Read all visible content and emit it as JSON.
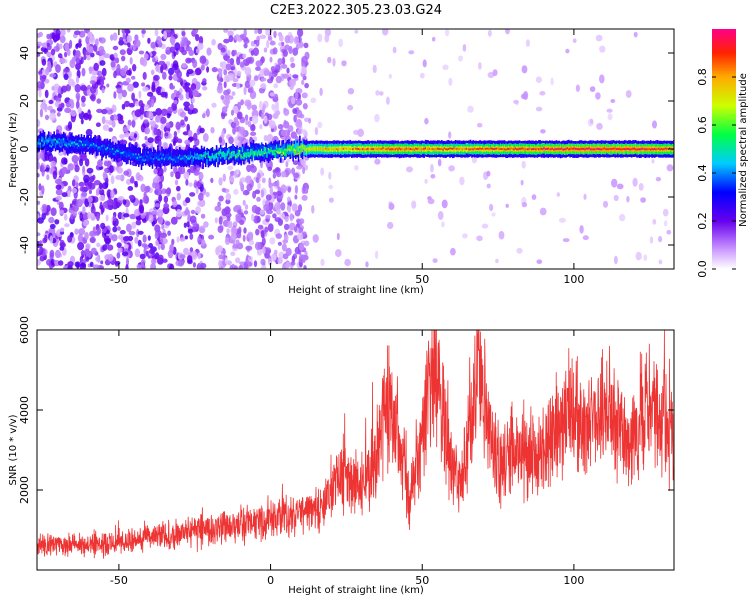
{
  "title": "C2E3.2022.305.23.03.G24",
  "chart_data": [
    {
      "type": "heatmap",
      "xlabel": "Height of straight line (km)",
      "ylabel": "Frequency (Hz)",
      "xlim": [
        -77,
        133
      ],
      "ylim": [
        -50,
        50
      ],
      "xticks": [
        -50,
        0,
        50,
        100
      ],
      "yticks": [
        -40,
        -20,
        0,
        20,
        40
      ],
      "colorbar": {
        "label": "Normalized spectral amplitude",
        "range": [
          0,
          1
        ],
        "ticks": [
          "0.0",
          "0.2",
          "0.4",
          "0.6",
          "0.8"
        ],
        "colormap": "rainbow (white-violet-blue-cyan-green-yellow-red-magenta)"
      },
      "ridge": {
        "description": "bright ridge near 0 Hz; noisy scattered speckle below ~12 km",
        "x": [
          -75,
          -60,
          -45,
          -30,
          -20,
          -10,
          0,
          10,
          20,
          40,
          60,
          80,
          100,
          120,
          133
        ],
        "frequency": [
          3,
          2,
          -3,
          -4,
          -3,
          -2,
          -1,
          0,
          0,
          0,
          0,
          0,
          0,
          0,
          0
        ],
        "amplitude": [
          0.45,
          0.4,
          0.4,
          0.4,
          0.5,
          0.55,
          0.55,
          0.7,
          0.75,
          0.85,
          0.8,
          0.85,
          0.9,
          0.9,
          0.85
        ]
      }
    },
    {
      "type": "line",
      "xlabel": "Height of straight line (km)",
      "ylabel": "SNR (10 * v/v)",
      "xlim": [
        -77,
        133
      ],
      "ylim": [
        0,
        6000
      ],
      "xticks": [
        -50,
        0,
        50,
        100
      ],
      "yticks": [
        2000,
        4000,
        6000
      ],
      "series": [
        {
          "color": "#ee3333",
          "x": [
            -77,
            -70,
            -60,
            -50,
            -40,
            -30,
            -20,
            -10,
            0,
            10,
            20,
            22,
            25,
            30,
            35,
            38,
            42,
            46,
            50,
            54,
            58,
            62,
            66,
            69,
            73,
            77,
            80,
            85,
            90,
            95,
            98,
            100,
            104,
            108,
            110,
            114,
            118,
            122,
            126,
            130,
            133
          ],
          "values": [
            600,
            600,
            650,
            700,
            800,
            900,
            1000,
            1150,
            1250,
            1400,
            1800,
            2300,
            2300,
            2000,
            2800,
            4300,
            3500,
            1600,
            3400,
            5100,
            3300,
            2000,
            3500,
            5300,
            3000,
            2600,
            3200,
            2800,
            3000,
            3400,
            4200,
            4100,
            3200,
            3700,
            4200,
            3700,
            3200,
            3800,
            4100,
            3800,
            3000
          ]
        }
      ]
    }
  ]
}
